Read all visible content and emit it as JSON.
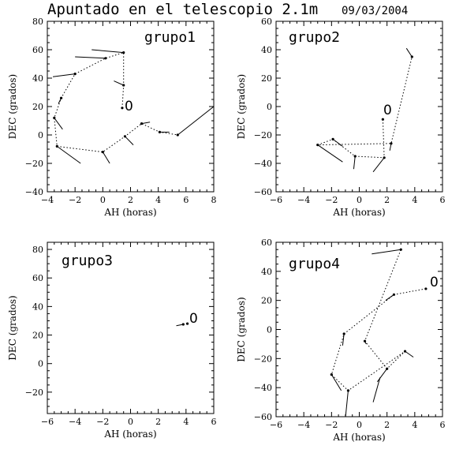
{
  "header": {
    "title": "Apuntado en el telescopio 2.1m",
    "date": "09/03/2004"
  },
  "chart_data": [
    {
      "type": "scatter",
      "group_label": "grupo1",
      "origin_label": "0",
      "xlabel": "AH (horas)",
      "ylabel": "DEC (grados)",
      "xlim": [
        -4,
        8
      ],
      "ylim": [
        -40,
        80
      ],
      "xticks": [
        -4,
        -2,
        0,
        2,
        4,
        6,
        8
      ],
      "yticks": [
        -40,
        -20,
        0,
        20,
        40,
        60,
        80
      ],
      "path": [
        [
          1.4,
          19
        ],
        [
          1.5,
          35
        ],
        [
          1.5,
          58
        ],
        [
          0.2,
          54
        ],
        [
          -2,
          43
        ],
        [
          -3,
          26
        ],
        [
          -3.5,
          12
        ],
        [
          -3.3,
          -8
        ],
        [
          0,
          -12
        ],
        [
          1.6,
          -1
        ],
        [
          2.8,
          8
        ],
        [
          4.1,
          2
        ],
        [
          5.4,
          0
        ]
      ],
      "vectors": [
        {
          "from": [
            1.5,
            35
          ],
          "to": [
            0.8,
            38
          ]
        },
        {
          "from": [
            1.5,
            58
          ],
          "to": [
            -0.8,
            60
          ]
        },
        {
          "from": [
            0.2,
            54
          ],
          "to": [
            -2,
            55
          ]
        },
        {
          "from": [
            -2,
            43
          ],
          "to": [
            -3.6,
            41
          ]
        },
        {
          "from": [
            -3,
            26
          ],
          "to": [
            -3.2,
            22
          ]
        },
        {
          "from": [
            -3.5,
            12
          ],
          "to": [
            -2.9,
            4
          ]
        },
        {
          "from": [
            -3.3,
            -8
          ],
          "to": [
            -1.6,
            -20
          ]
        },
        {
          "from": [
            0,
            -12
          ],
          "to": [
            0.5,
            -20
          ]
        },
        {
          "from": [
            1.6,
            -1
          ],
          "to": [
            2.2,
            -7
          ]
        },
        {
          "from": [
            2.8,
            8
          ],
          "to": [
            3.4,
            9
          ]
        },
        {
          "from": [
            4.1,
            2
          ],
          "to": [
            4.8,
            2
          ]
        },
        {
          "from": [
            5.4,
            0
          ],
          "to": [
            8,
            20
          ]
        }
      ]
    },
    {
      "type": "scatter",
      "group_label": "grupo2",
      "origin_label": "0",
      "xlabel": "AH (horas)",
      "ylabel": "DEC (grados)",
      "xlim": [
        -6,
        6
      ],
      "ylim": [
        -60,
        60
      ],
      "xticks": [
        -6,
        -4,
        -2,
        0,
        2,
        4,
        6
      ],
      "yticks": [
        -60,
        -40,
        -20,
        0,
        20,
        40,
        60
      ],
      "path": [
        [
          1.7,
          -9
        ],
        [
          1.8,
          -36
        ],
        [
          -0.3,
          -35
        ],
        [
          -1.9,
          -23
        ],
        [
          -3,
          -27
        ],
        [
          2.3,
          -26
        ],
        [
          3.8,
          35
        ]
      ],
      "vectors": [
        {
          "from": [
            3.8,
            35
          ],
          "to": [
            3.4,
            41
          ]
        },
        {
          "from": [
            2.3,
            -26
          ],
          "to": [
            2.2,
            -31
          ]
        },
        {
          "from": [
            1.8,
            -36
          ],
          "to": [
            1,
            -46
          ]
        },
        {
          "from": [
            -0.3,
            -35
          ],
          "to": [
            -0.4,
            -44
          ]
        },
        {
          "from": [
            -1.9,
            -23
          ],
          "to": [
            -1.2,
            -28
          ]
        },
        {
          "from": [
            -3,
            -27
          ],
          "to": [
            -1.2,
            -39
          ]
        }
      ]
    },
    {
      "type": "scatter",
      "group_label": "grupo3",
      "origin_label": "0",
      "xlabel": "AH (horas)",
      "ylabel": "DEC (grados)",
      "xlim": [
        -6,
        6
      ],
      "ylim": [
        -35,
        85
      ],
      "xticks": [
        -6,
        -4,
        -2,
        0,
        2,
        4,
        6
      ],
      "yticks": [
        -20,
        0,
        20,
        40,
        60,
        80
      ],
      "path": [
        [
          4.1,
          28
        ],
        [
          3.8,
          27.5
        ]
      ],
      "vectors": [
        {
          "from": [
            3.8,
            27.5
          ],
          "to": [
            3.3,
            26.5
          ]
        }
      ]
    },
    {
      "type": "scatter",
      "group_label": "grupo4",
      "origin_label": "0",
      "xlabel": "AH (horas)",
      "ylabel": "DEC (grados)",
      "xlim": [
        -6,
        6
      ],
      "ylim": [
        -60,
        60
      ],
      "xticks": [
        -6,
        -4,
        -2,
        0,
        2,
        4,
        6
      ],
      "yticks": [
        -60,
        -40,
        -20,
        0,
        20,
        40,
        60
      ],
      "path": [
        [
          4.8,
          28
        ],
        [
          2.5,
          24
        ],
        [
          -1.1,
          -3
        ],
        [
          -2,
          -31
        ],
        [
          -0.8,
          -42
        ],
        [
          3.3,
          -15
        ],
        [
          2,
          -27
        ],
        [
          0.4,
          -8
        ],
        [
          3,
          55
        ]
      ],
      "vectors": [
        {
          "from": [
            3,
            55
          ],
          "to": [
            0.9,
            52
          ]
        },
        {
          "from": [
            2.5,
            24
          ],
          "to": [
            1.9,
            20
          ]
        },
        {
          "from": [
            -1.1,
            -3
          ],
          "to": [
            -1.2,
            -11
          ]
        },
        {
          "from": [
            -2,
            -31
          ],
          "to": [
            -1.3,
            -42
          ]
        },
        {
          "from": [
            -0.8,
            -42
          ],
          "to": [
            -1,
            -61
          ]
        },
        {
          "from": [
            3.3,
            -15
          ],
          "to": [
            3.9,
            -19
          ]
        },
        {
          "from": [
            2,
            -27
          ],
          "to": [
            1.3,
            -36
          ]
        },
        {
          "from": [
            1.5,
            -33
          ],
          "to": [
            1,
            -50
          ]
        },
        {
          "from": [
            0.4,
            -8
          ],
          "to": [
            0.5,
            -10
          ]
        }
      ]
    }
  ]
}
